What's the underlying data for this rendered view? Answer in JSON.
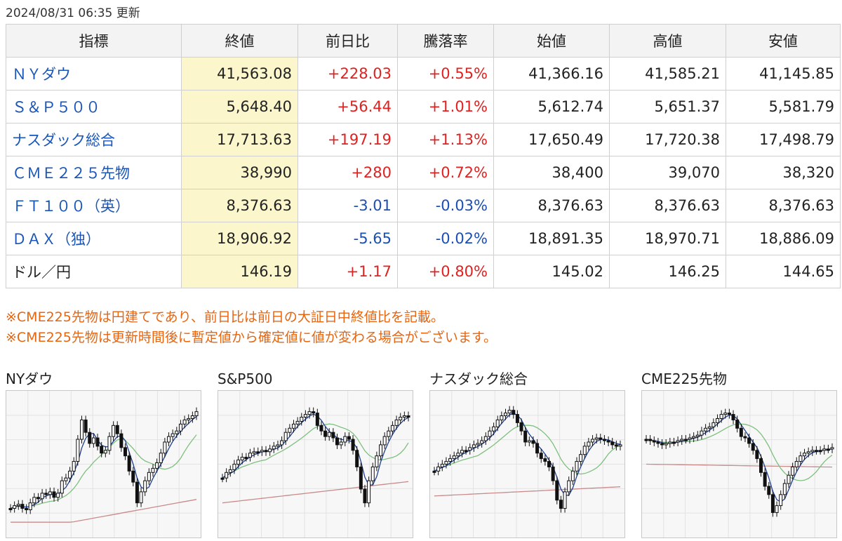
{
  "header": {
    "updated": "2024/08/31 06:35 更新"
  },
  "table": {
    "columns": [
      "指標",
      "終値",
      "前日比",
      "騰落率",
      "始値",
      "高値",
      "安値"
    ],
    "rows": [
      {
        "name": "ＮＹダウ",
        "link": true,
        "close": "41,563.08",
        "change": "+228.03",
        "rate": "+0.55%",
        "open": "41,366.16",
        "high": "41,585.21",
        "low": "41,145.85",
        "dir": "up"
      },
      {
        "name": "Ｓ＆Ｐ５００",
        "link": true,
        "close": "5,648.40",
        "change": "+56.44",
        "rate": "+1.01%",
        "open": "5,612.74",
        "high": "5,651.37",
        "low": "5,581.79",
        "dir": "up"
      },
      {
        "name": "ナスダック総合",
        "link": true,
        "close": "17,713.63",
        "change": "+197.19",
        "rate": "+1.13%",
        "open": "17,650.49",
        "high": "17,720.38",
        "low": "17,498.79",
        "dir": "up"
      },
      {
        "name": "ＣＭＥ２２５先物",
        "link": true,
        "close": "38,990",
        "change": "+280",
        "rate": "+0.72%",
        "open": "38,400",
        "high": "39,070",
        "low": "38,320",
        "dir": "up"
      },
      {
        "name": "ＦＴ１００（英）",
        "link": true,
        "close": "8,376.63",
        "change": "-3.01",
        "rate": "-0.03%",
        "open": "8,376.63",
        "high": "8,376.63",
        "low": "8,376.63",
        "dir": "down"
      },
      {
        "name": "ＤＡＸ（独）",
        "link": true,
        "close": "18,906.92",
        "change": "-5.65",
        "rate": "-0.02%",
        "open": "18,891.35",
        "high": "18,970.71",
        "low": "18,886.09",
        "dir": "down"
      },
      {
        "name": "ドル／円",
        "link": false,
        "close": "146.19",
        "change": "+1.17",
        "rate": "+0.80%",
        "open": "145.02",
        "high": "146.25",
        "low": "144.65",
        "dir": "up"
      }
    ]
  },
  "notes": [
    "※CME225先物は円建てであり、前日比は前日の大証日中終値比を記載。",
    "※CME225先物は更新時間後に暫定値から確定値に値が変わる場合がございます。"
  ],
  "colors": {
    "up": "#e0211f",
    "down": "#1a4fb5",
    "link": "#1a56b8",
    "note": "#e7650f",
    "close_bg": "#fbf6cc",
    "ma_short": "#1f3f8f",
    "ma_mid": "#7fbf7f",
    "ma_long": "#c98a8a"
  },
  "charts": [
    {
      "title": "NYダウ",
      "shape": [
        0.82,
        0.8,
        0.79,
        0.82,
        0.83,
        0.78,
        0.74,
        0.75,
        0.71,
        0.72,
        0.7,
        0.74,
        0.71,
        0.62,
        0.6,
        0.55,
        0.48,
        0.32,
        0.18,
        0.27,
        0.35,
        0.31,
        0.37,
        0.42,
        0.4,
        0.3,
        0.22,
        0.28,
        0.38,
        0.44,
        0.55,
        0.63,
        0.78,
        0.7,
        0.62,
        0.56,
        0.53,
        0.49,
        0.42,
        0.34,
        0.3,
        0.28,
        0.26,
        0.21,
        0.18,
        0.17,
        0.15,
        0.12
      ]
    },
    {
      "title": "S&P500",
      "shape": [
        0.6,
        0.56,
        0.54,
        0.5,
        0.47,
        0.45,
        0.45,
        0.42,
        0.41,
        0.41,
        0.4,
        0.41,
        0.39,
        0.37,
        0.36,
        0.33,
        0.27,
        0.24,
        0.21,
        0.19,
        0.16,
        0.14,
        0.12,
        0.13,
        0.22,
        0.26,
        0.3,
        0.27,
        0.31,
        0.36,
        0.34,
        0.3,
        0.32,
        0.4,
        0.52,
        0.68,
        0.78,
        0.62,
        0.52,
        0.44,
        0.36,
        0.3,
        0.26,
        0.22,
        0.18,
        0.16,
        0.15,
        0.16
      ]
    },
    {
      "title": "ナスダック総合",
      "shape": [
        0.55,
        0.52,
        0.5,
        0.48,
        0.46,
        0.44,
        0.42,
        0.4,
        0.4,
        0.38,
        0.36,
        0.35,
        0.33,
        0.3,
        0.26,
        0.23,
        0.18,
        0.15,
        0.13,
        0.11,
        0.14,
        0.2,
        0.26,
        0.34,
        0.33,
        0.35,
        0.42,
        0.46,
        0.48,
        0.52,
        0.62,
        0.76,
        0.82,
        0.7,
        0.62,
        0.55,
        0.48,
        0.43,
        0.37,
        0.34,
        0.32,
        0.31,
        0.32,
        0.33,
        0.34,
        0.36,
        0.37,
        0.36
      ]
    },
    {
      "title": "CME225先物",
      "shape": [
        0.32,
        0.33,
        0.34,
        0.35,
        0.36,
        0.35,
        0.34,
        0.34,
        0.33,
        0.32,
        0.32,
        0.31,
        0.3,
        0.29,
        0.26,
        0.24,
        0.23,
        0.2,
        0.17,
        0.14,
        0.13,
        0.14,
        0.18,
        0.24,
        0.3,
        0.31,
        0.35,
        0.4,
        0.46,
        0.56,
        0.66,
        0.72,
        0.85,
        0.8,
        0.72,
        0.64,
        0.58,
        0.52,
        0.48,
        0.44,
        0.42,
        0.41,
        0.4,
        0.4,
        0.4,
        0.39,
        0.39,
        0.38
      ]
    }
  ]
}
